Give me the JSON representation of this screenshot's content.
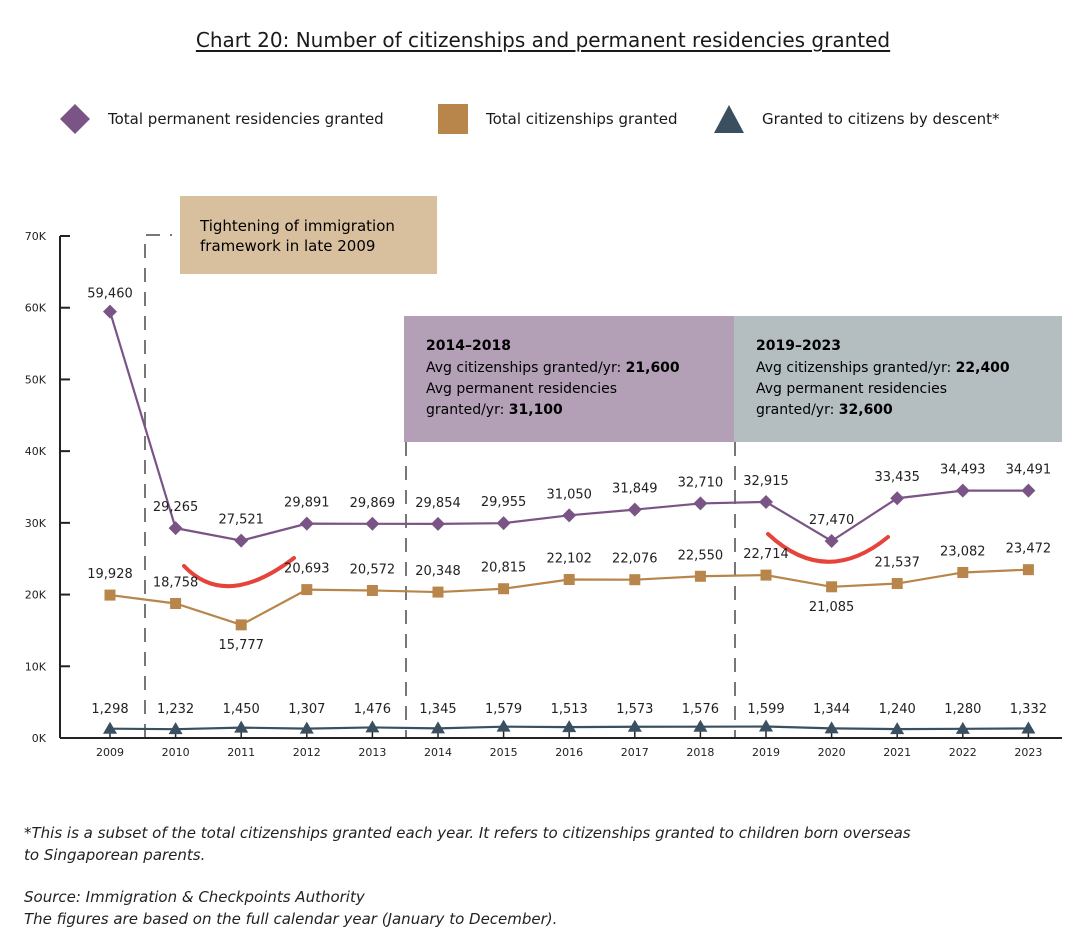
{
  "title": "Chart 20: Number of citizenships and permanent residencies granted",
  "legend": [
    {
      "label": "Total permanent residencies granted",
      "marker": "diamond",
      "color": "#7b5486"
    },
    {
      "label": "Total citizenships granted",
      "marker": "square",
      "color": "#b8854a"
    },
    {
      "label": "Granted to citizens by descent*",
      "marker": "triangle",
      "color": "#3a5060"
    }
  ],
  "annotations": {
    "tightening": {
      "line1": "Tightening of immigration",
      "line2": "framework in late 2009"
    },
    "period1": {
      "heading": "2014–2018",
      "line1_prefix": "Avg citizenships granted/yr: ",
      "line1_value": "21,600",
      "line2": "Avg permanent residencies",
      "line3_prefix": "granted/yr: ",
      "line3_value": "31,100"
    },
    "period2": {
      "heading": "2019–2023",
      "line1_prefix": "Avg citizenships granted/yr: ",
      "line1_value": "22,400",
      "line2": "Avg permanent residencies",
      "line3_prefix": "granted/yr: ",
      "line3_value": "32,600"
    }
  },
  "colors": {
    "pr": "#7b5486",
    "citizenship": "#b8854a",
    "descent": "#3a5060",
    "tan_box": "#d8c09f",
    "purple_box": "#b39fb6",
    "grey_box": "#b4bec1",
    "red_marker": "#e5443a"
  },
  "chart_data": {
    "type": "line",
    "x": [
      "2009",
      "2010",
      "2011",
      "2012",
      "2013",
      "2014",
      "2015",
      "2016",
      "2017",
      "2018",
      "2019",
      "2020",
      "2021",
      "2022",
      "2023"
    ],
    "y_ticks": [
      "0K",
      "10K",
      "20K",
      "30K",
      "40K",
      "50K",
      "60K",
      "70K"
    ],
    "ylim": [
      0,
      70000
    ],
    "series": [
      {
        "name": "Total permanent residencies granted",
        "values": [
          59460,
          29265,
          27521,
          29891,
          29869,
          29854,
          29955,
          31050,
          31849,
          32710,
          32915,
          27470,
          33435,
          34493,
          34491
        ],
        "labels": [
          "59,460",
          "29,265",
          "27,521",
          "29,891",
          "29,869",
          "29,854",
          "29,955",
          "31,050",
          "31,849",
          "32,710",
          "32,915",
          "27,470",
          "33,435",
          "34,493",
          "34,491"
        ]
      },
      {
        "name": "Total citizenships granted",
        "values": [
          19928,
          18758,
          15777,
          20693,
          20572,
          20348,
          20815,
          22102,
          22076,
          22550,
          22714,
          21085,
          21537,
          23082,
          23472
        ],
        "labels": [
          "19,928",
          "18,758",
          "15,777",
          "20,693",
          "20,572",
          "20,348",
          "20,815",
          "22,102",
          "22,076",
          "22,550",
          "22,714",
          "21,085",
          "21,537",
          "23,082",
          "23,472"
        ]
      },
      {
        "name": "Granted to citizens by descent*",
        "values": [
          1298,
          1232,
          1450,
          1307,
          1476,
          1345,
          1579,
          1513,
          1573,
          1576,
          1599,
          1344,
          1240,
          1280,
          1332
        ],
        "labels": [
          "1,298",
          "1,232",
          "1,450",
          "1,307",
          "1,476",
          "1,345",
          "1,579",
          "1,513",
          "1,573",
          "1,576",
          "1,599",
          "1,344",
          "1,240",
          "1,280",
          "1,332"
        ]
      }
    ]
  },
  "footnote": {
    "line1": "*This is a subset of the total citizenships granted each year. It refers to citizenships granted to children born overseas",
    "line2": "to Singaporean parents.",
    "source": "Source: Immigration & Checkpoints Authority",
    "period": "The figures are based on the full calendar year (January to December)."
  }
}
